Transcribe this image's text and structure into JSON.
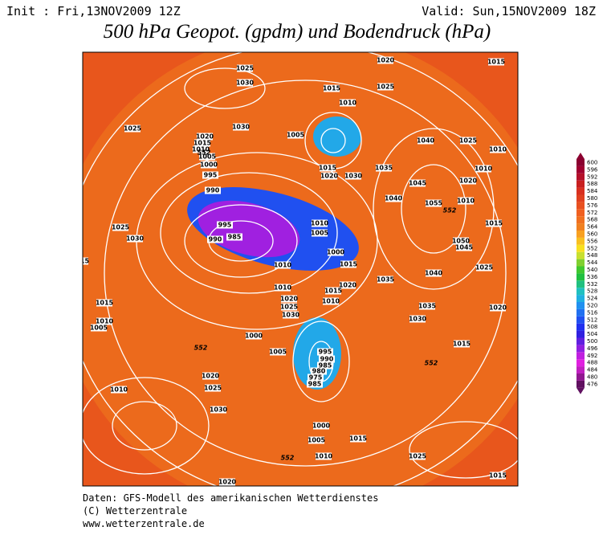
{
  "header": {
    "init": "Init : Fri,13NOV2009 12Z",
    "valid": "Valid: Sun,15NOV2009 18Z",
    "title": "500 hPa Geopot. (gpdm) und Bodendruck (hPa)"
  },
  "map": {
    "pressure_labels": [
      "1025",
      "1030",
      "1020",
      "1015",
      "1015",
      "1025",
      "1010",
      "1005",
      "1030",
      "1025",
      "1020",
      "1015",
      "1010",
      "1005",
      "1000",
      "995",
      "990",
      "995",
      "990",
      "985",
      "1010",
      "1020",
      "1025",
      "1030",
      "1000",
      "1005",
      "985",
      "1000",
      "1005",
      "1010",
      "1015",
      "1025",
      "1020",
      "1015",
      "1015",
      "1010",
      "1030",
      "1025",
      "1020",
      "1015",
      "1025",
      "1030",
      "1040",
      "1045",
      "1040",
      "1035",
      "1030",
      "1020",
      "1015",
      "1055",
      "1050",
      "1045",
      "1040",
      "1035",
      "1030",
      "1025",
      "1020",
      "1015",
      "1010",
      "1010",
      "1025",
      "1010",
      "1020",
      "1015",
      "1035",
      "1020",
      "1015",
      "1010",
      "1005",
      "1010",
      "1000",
      "1015",
      "995",
      "990",
      "985",
      "980",
      "975",
      "1010",
      "1015",
      "1010",
      "1005"
    ],
    "height_labels": [
      "552",
      "552",
      "552",
      "552",
      "552"
    ]
  },
  "colorbar": {
    "levels": [
      476,
      480,
      484,
      488,
      492,
      496,
      500,
      504,
      508,
      512,
      516,
      520,
      524,
      528,
      532,
      536,
      540,
      544,
      548,
      552,
      556,
      560,
      564,
      568,
      572,
      576,
      580,
      584,
      588,
      592,
      596,
      600
    ],
    "colors": [
      "#601060",
      "#901890",
      "#c020c0",
      "#e020e0",
      "#c020e0",
      "#9020e0",
      "#6020e0",
      "#3020e0",
      "#2030f0",
      "#2050f0",
      "#2070f0",
      "#2090f0",
      "#20b0e0",
      "#20c0c0",
      "#20c080",
      "#20c040",
      "#40c830",
      "#80d030",
      "#c8e030",
      "#f8e020",
      "#f8c020",
      "#f8a020",
      "#f08020",
      "#f07020",
      "#f06020",
      "#e85020",
      "#e04020",
      "#d83020",
      "#c82020",
      "#b4102a",
      "#a00030",
      "#8b0030"
    ]
  },
  "footer": {
    "lines": [
      "Daten: GFS-Modell des amerikanischen Wetterdienstes",
      "(C) Wetterzentrale",
      "www.wetterzentrale.de"
    ]
  }
}
